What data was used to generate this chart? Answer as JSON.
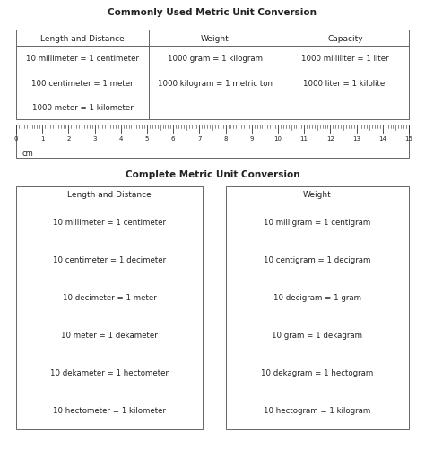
{
  "title1": "Commonly Used Metric Unit Conversion",
  "title2": "Complete Metric Unit Conversion",
  "bg_color": "#ffffff",
  "text_color": "#222222",
  "title_fontsize": 7.5,
  "cell_fontsize": 6.2,
  "header_fontsize": 6.5,
  "common_table": {
    "headers": [
      "Length and Distance",
      "Weight",
      "Capacity"
    ],
    "col1": [
      "10 millimeter = 1 centimeter",
      "100 centimeter = 1 meter",
      "1000 meter = 1 kilometer"
    ],
    "col2": [
      "1000 gram = 1 kilogram",
      "1000 kilogram = 1 metric ton",
      ""
    ],
    "col3": [
      "1000 milliliter = 1 liter",
      "1000 liter = 1 kiloliter",
      ""
    ]
  },
  "ruler_numbers": [
    "0",
    "1",
    "2",
    "3",
    "4",
    "5",
    "6",
    "7",
    "8",
    "9",
    "10",
    "11",
    "12",
    "13",
    "14",
    "15"
  ],
  "ruler_label": "cm",
  "complete_length": {
    "header": "Length and Distance",
    "rows": [
      "10 millimeter = 1 centimeter",
      "10 centimeter = 1 decimeter",
      "10 decimeter = 1 meter",
      "10 meter = 1 dekameter",
      "10 dekameter = 1 hectometer",
      "10 hectometer = 1 kilometer"
    ]
  },
  "complete_weight": {
    "header": "Weight",
    "rows": [
      "10 milligram = 1 centigram",
      "10 centigram = 1 decigram",
      "10 decigram = 1 gram",
      "10 gram = 1 dekagram",
      "10 dekagram = 1 hectogram",
      "10 hectogram = 1 kilogram"
    ]
  }
}
